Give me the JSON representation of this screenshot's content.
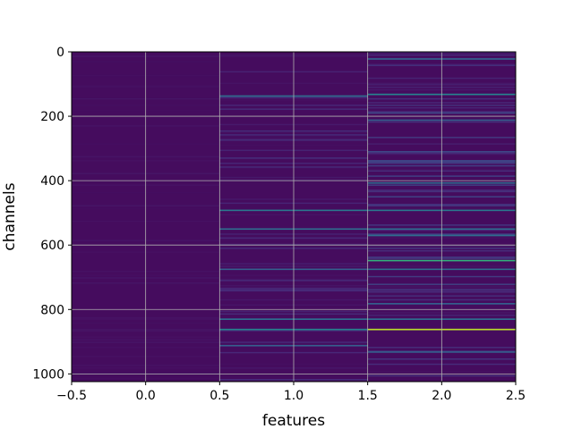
{
  "chart_data": {
    "type": "heatmap",
    "title": "",
    "xlabel": "features",
    "ylabel": "channels",
    "xlim": [
      -0.5,
      2.5
    ],
    "ylim": [
      1024,
      0
    ],
    "y_inverted": true,
    "grid": true,
    "colormap": "viridis",
    "columns": [
      0,
      1,
      2
    ],
    "rows": 1024,
    "x_ticks": [
      {
        "value": -0.5,
        "label": "−0.5"
      },
      {
        "value": 0.0,
        "label": "0.0"
      },
      {
        "value": 0.5,
        "label": "0.5"
      },
      {
        "value": 1.0,
        "label": "1.0"
      },
      {
        "value": 1.5,
        "label": "1.5"
      },
      {
        "value": 2.0,
        "label": "2.0"
      },
      {
        "value": 2.5,
        "label": "2.5"
      }
    ],
    "y_ticks": [
      {
        "value": 0,
        "label": "0"
      },
      {
        "value": 200,
        "label": "200"
      },
      {
        "value": 400,
        "label": "400"
      },
      {
        "value": 600,
        "label": "600"
      },
      {
        "value": 800,
        "label": "800"
      },
      {
        "value": 1000,
        "label": "1000"
      }
    ],
    "highlights": [
      {
        "feature": 1,
        "channel": 135,
        "value": 0.35
      },
      {
        "feature": 1,
        "channel": 490,
        "value": 0.4
      },
      {
        "feature": 1,
        "channel": 548,
        "value": 0.35
      },
      {
        "feature": 1,
        "channel": 673,
        "value": 0.3
      },
      {
        "feature": 1,
        "channel": 828,
        "value": 0.35
      },
      {
        "feature": 1,
        "channel": 860,
        "value": 0.45
      },
      {
        "feature": 1,
        "channel": 910,
        "value": 0.3
      },
      {
        "feature": 2,
        "channel": 20,
        "value": 0.3
      },
      {
        "feature": 2,
        "channel": 130,
        "value": 0.45
      },
      {
        "feature": 2,
        "channel": 210,
        "value": 0.3
      },
      {
        "feature": 2,
        "channel": 405,
        "value": 0.35
      },
      {
        "feature": 2,
        "channel": 490,
        "value": 0.4
      },
      {
        "feature": 2,
        "channel": 548,
        "value": 0.35
      },
      {
        "feature": 2,
        "channel": 568,
        "value": 0.35
      },
      {
        "feature": 2,
        "channel": 646,
        "value": 0.65
      },
      {
        "feature": 2,
        "channel": 673,
        "value": 0.35
      },
      {
        "feature": 2,
        "channel": 780,
        "value": 0.3
      },
      {
        "feature": 2,
        "channel": 828,
        "value": 0.35
      },
      {
        "feature": 2,
        "channel": 860,
        "value": 0.9
      },
      {
        "feature": 2,
        "channel": 930,
        "value": 0.3
      }
    ]
  }
}
